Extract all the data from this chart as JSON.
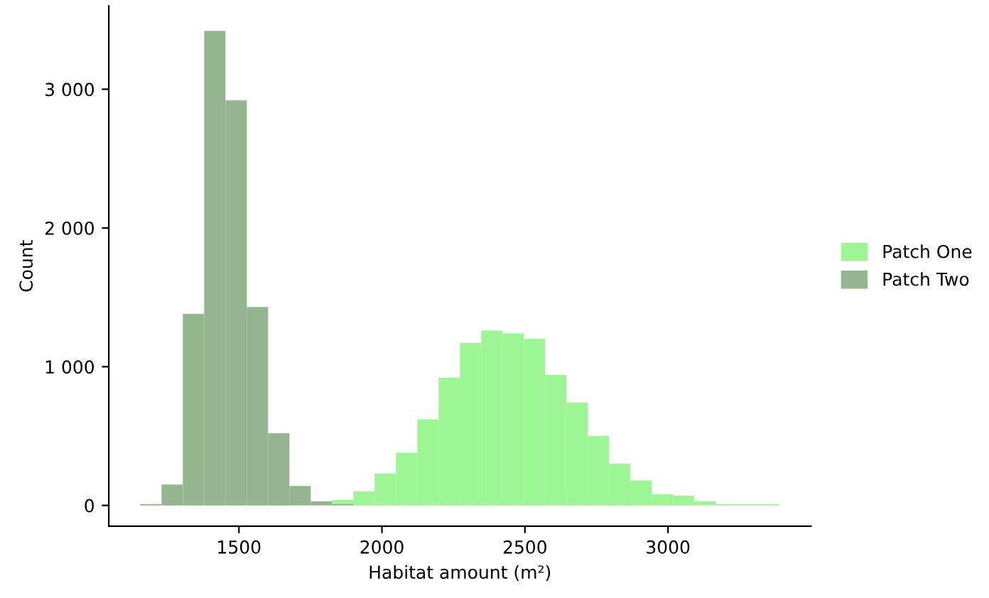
{
  "chart_data": {
    "type": "histogram",
    "xlabel": "Habitat amount (m²)",
    "ylabel": "Count",
    "bins": [
      1155,
      1229.5,
      1304,
      1378.5,
      1453,
      1527.5,
      1602,
      1676.5,
      1751,
      1825.5,
      1900,
      1974.5,
      2049,
      2123.5,
      2198,
      2272.5,
      2347,
      2421.5,
      2496,
      2570.5,
      2645,
      2719.5,
      2794,
      2868.5,
      2943,
      3017.5,
      3092,
      3166.5,
      3241,
      3315.5,
      3390
    ],
    "series": [
      {
        "name": "Patch One",
        "color": "#9ef594",
        "values": [
          0,
          0,
          0,
          0,
          0,
          0,
          0,
          0,
          null,
          40,
          100,
          230,
          380,
          620,
          920,
          1170,
          1260,
          1240,
          1200,
          940,
          740,
          500,
          300,
          180,
          80,
          70,
          30,
          10,
          10,
          10
        ]
      },
      {
        "name": "Patch Two",
        "color": "#94b68e",
        "values": [
          10,
          150,
          1380,
          3420,
          2920,
          1430,
          520,
          140,
          30,
          10,
          0,
          0,
          0,
          0,
          0,
          0,
          0,
          0,
          0,
          0,
          0,
          0,
          0,
          0,
          0,
          0,
          0,
          0,
          0,
          0
        ]
      }
    ],
    "xlim": [
      1045,
      3500
    ],
    "ylim": [
      -150,
      3600
    ],
    "xticks": [
      1500,
      2000,
      2500,
      3000
    ],
    "yticks": [
      0,
      {
        "value": 1000,
        "label": "1 000"
      },
      {
        "value": 2000,
        "label": "2 000"
      },
      {
        "value": 3000,
        "label": "3 000"
      }
    ],
    "grid": false,
    "legend": "right"
  }
}
